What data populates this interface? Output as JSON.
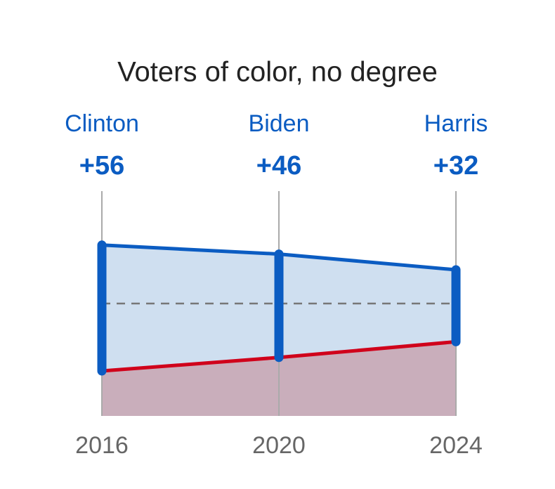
{
  "chart_data": {
    "type": "range_area",
    "title": "Voters of color, no degree",
    "categories": [
      "2016",
      "2020",
      "2024"
    ],
    "candidates": [
      "Clinton",
      "Biden",
      "Harris"
    ],
    "margins": {
      "values": [
        56,
        46,
        32
      ],
      "value_labels": [
        "+56",
        "+46",
        "+32"
      ],
      "color": "#0b5cc2"
    },
    "series": [
      {
        "color": "#0b5cc2",
        "fill": "#cfdff0",
        "values": [
          76,
          72,
          65
        ]
      },
      {
        "color": "#d0021b",
        "fill": "#c9aebb",
        "values": [
          20,
          26,
          33
        ]
      }
    ],
    "reference_line": 50,
    "ylim": [
      0,
      100
    ]
  }
}
